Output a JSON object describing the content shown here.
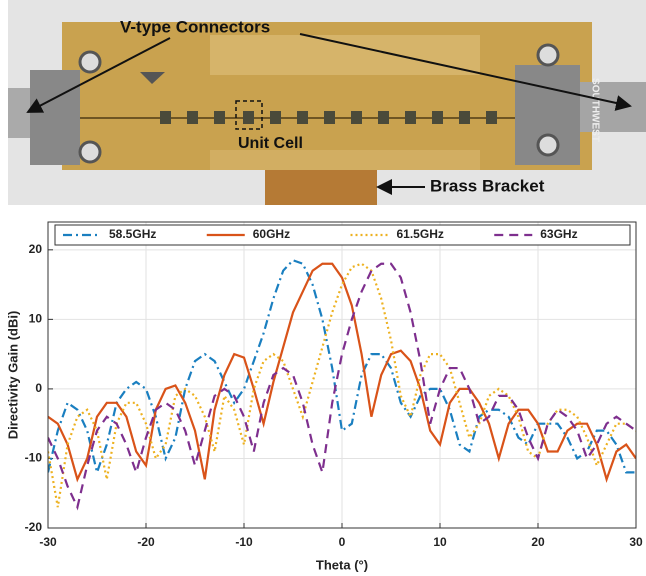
{
  "photo": {
    "labels": {
      "connectors": "V-type Connectors",
      "unit_cell": "Unit Cell",
      "bracket": "Brass Bracket",
      "brand": "SOUTHWEST"
    }
  },
  "chart_data": {
    "type": "line",
    "xlabel": "Theta (°)",
    "ylabel": "Directivity Gain (dBi)",
    "xlim": [
      -30,
      30
    ],
    "ylim": [
      -20,
      24
    ],
    "xticks": [
      -30,
      -20,
      -10,
      0,
      10,
      20,
      30
    ],
    "yticks": [
      -20,
      -10,
      0,
      10,
      20
    ],
    "grid": true,
    "legend": "top",
    "x": [
      -30,
      -29,
      -28,
      -27,
      -26,
      -25,
      -24,
      -23,
      -22,
      -21,
      -20,
      -19,
      -18,
      -17,
      -16,
      -15,
      -14,
      -13,
      -12,
      -11,
      -10,
      -9,
      -8,
      -7,
      -6,
      -5,
      -4,
      -3,
      -2,
      -1,
      0,
      1,
      2,
      3,
      4,
      5,
      6,
      7,
      8,
      9,
      10,
      11,
      12,
      13,
      14,
      15,
      16,
      17,
      18,
      19,
      20,
      21,
      22,
      23,
      24,
      25,
      26,
      27,
      28,
      29,
      30
    ],
    "series": [
      {
        "name": "58.5GHz",
        "color": "#1a7fc0",
        "dash": "dashdot",
        "values": [
          -12,
          -6,
          -2,
          -3,
          -6,
          -12,
          -8,
          -2,
          0,
          1,
          0,
          -4,
          -10,
          -7,
          0,
          4,
          5,
          4,
          1,
          -2,
          0,
          4,
          8,
          13,
          17,
          18.5,
          18,
          15,
          10,
          3,
          -6,
          -5,
          2,
          5,
          5,
          3,
          -2,
          -4,
          -1,
          0,
          0,
          -3,
          -8,
          -9,
          -4,
          -3,
          -3,
          -4,
          -7,
          -8,
          -5,
          -5,
          -5,
          -7,
          -10,
          -9,
          -6,
          -6,
          -8,
          -12,
          -12
        ]
      },
      {
        "name": "60GHz",
        "color": "#d95319",
        "dash": "solid",
        "values": [
          -4,
          -5,
          -8,
          -13,
          -10,
          -4,
          -2,
          -2,
          -4,
          -9,
          -11,
          -3,
          0,
          0.5,
          -2,
          -6,
          -13,
          -3,
          2,
          5,
          4.5,
          0,
          -5,
          1,
          6,
          11,
          14,
          17,
          18,
          18,
          16,
          12,
          5,
          -4,
          2,
          5,
          5.5,
          4,
          0,
          -6,
          -8,
          -2,
          0,
          0,
          -2,
          -5,
          -10,
          -5,
          -3,
          -3,
          -5,
          -9,
          -9,
          -6,
          -5,
          -5,
          -8,
          -13,
          -9,
          -8,
          -10
        ]
      },
      {
        "name": "61.5GHz",
        "color": "#edb120",
        "dash": "dotted",
        "values": [
          -9,
          -17,
          -8,
          -4,
          -3,
          -6,
          -13,
          -5,
          -2,
          -2,
          -5,
          -10,
          -8,
          -1,
          0,
          -1,
          -4,
          -9,
          -1,
          -3,
          -8,
          0,
          4,
          5,
          4,
          0,
          -4,
          1,
          6,
          11,
          15,
          17.5,
          18,
          17,
          13,
          7,
          -1,
          -4,
          2,
          5,
          5,
          3,
          -2,
          -7,
          -5,
          -1,
          0,
          -1,
          -4,
          -9,
          -10,
          -5,
          -3,
          -3,
          -4,
          -7,
          -11,
          -8,
          -5,
          -5,
          -6
        ]
      },
      {
        "name": "63GHz",
        "color": "#7e2f8e",
        "dash": "dashed",
        "values": [
          -7,
          -10,
          -14,
          -17,
          -11,
          -6,
          -4,
          -5,
          -8,
          -12,
          -7,
          -3,
          -2,
          -3,
          -6,
          -11,
          -6,
          -1,
          0,
          -1,
          -4,
          -9,
          -2,
          2,
          3,
          2,
          -2,
          -8,
          -12,
          -2,
          5,
          10,
          14,
          17,
          18,
          18,
          16,
          11,
          4,
          -5,
          0,
          3,
          3,
          0,
          -5,
          -4,
          -1,
          -1,
          -3,
          -7,
          -10,
          -5,
          -3,
          -4,
          -6,
          -10,
          -8,
          -5,
          -4,
          -5,
          -6
        ]
      }
    ]
  }
}
